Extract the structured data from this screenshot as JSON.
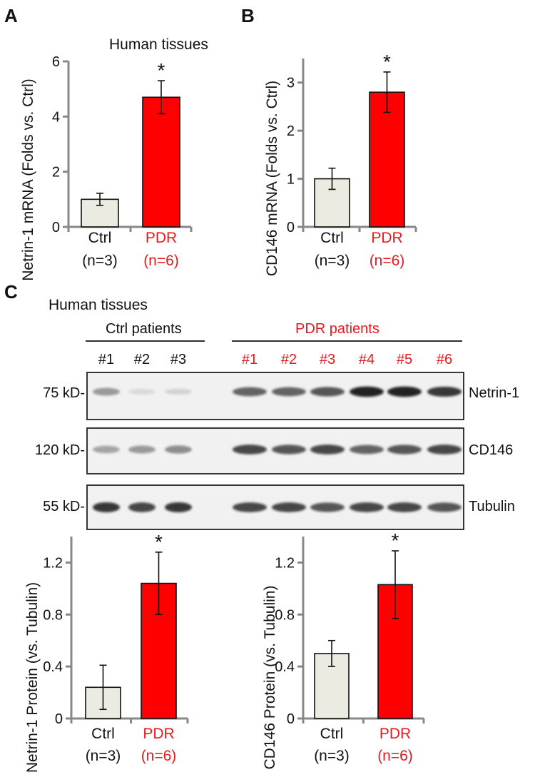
{
  "panels": {
    "A": "A",
    "B": "B",
    "C": "C"
  },
  "colors": {
    "ctrl_fill": "#ecebe2",
    "pdr_fill": "#ff0000",
    "pdr_text": "#e8191e",
    "axis": "#888888"
  },
  "panel_a_header": "Human tissues",
  "panel_c_header": "Human tissues",
  "chart_data": [
    {
      "id": "A",
      "type": "bar",
      "title": "",
      "ylabel": "Netrin-1 mRNA (Folds vs. Ctrl)",
      "xlabel": "",
      "ylim": [
        0,
        6
      ],
      "yticks": [
        "0",
        "2",
        "4",
        "6"
      ],
      "categories": [
        "Ctrl",
        "PDR"
      ],
      "category_n": [
        "(n=3)",
        "(n=6)"
      ],
      "values": [
        1.0,
        4.7
      ],
      "errors": [
        0.22,
        0.6
      ],
      "significance": [
        "",
        "*"
      ]
    },
    {
      "id": "B",
      "type": "bar",
      "title": "",
      "ylabel": "CD146 mRNA (Folds vs. Ctrl)",
      "xlabel": "",
      "ylim": [
        0,
        3.5
      ],
      "yticks": [
        "0",
        "1",
        "2",
        "3"
      ],
      "categories": [
        "Ctrl",
        "PDR"
      ],
      "category_n": [
        "(n=3)",
        "(n=6)"
      ],
      "values": [
        1.0,
        2.8
      ],
      "errors": [
        0.22,
        0.42
      ],
      "significance": [
        "",
        "*"
      ]
    },
    {
      "id": "C1",
      "type": "bar",
      "title": "",
      "ylabel": "Netrin-1 Protein (vs. Tubulin)",
      "xlabel": "",
      "ylim": [
        0,
        1.4
      ],
      "yticks": [
        "0",
        "0.4",
        "0.8",
        "1.2"
      ],
      "categories": [
        "Ctrl",
        "PDR"
      ],
      "category_n": [
        "(n=3)",
        "(n=6)"
      ],
      "values": [
        0.24,
        1.04
      ],
      "errors": [
        0.17,
        0.24
      ],
      "significance": [
        "",
        "*"
      ]
    },
    {
      "id": "C2",
      "type": "bar",
      "title": "",
      "ylabel": "CD146 Protein (vs. Tubulin)",
      "xlabel": "",
      "ylim": [
        0,
        1.4
      ],
      "yticks": [
        "0",
        "0.4",
        "0.8",
        "1.2"
      ],
      "categories": [
        "Ctrl",
        "PDR"
      ],
      "category_n": [
        "(n=3)",
        "(n=6)"
      ],
      "values": [
        0.5,
        1.03
      ],
      "errors": [
        0.1,
        0.26
      ],
      "significance": [
        "",
        "*"
      ]
    }
  ],
  "western_blot": {
    "ctrl_group_label": "Ctrl patients",
    "pdr_group_label": "PDR patients",
    "ctrl_lanes": [
      "#1",
      "#2",
      "#3"
    ],
    "pdr_lanes": [
      "#1",
      "#2",
      "#3",
      "#4",
      "#5",
      "#6"
    ],
    "blots": [
      {
        "marker": "75 kD-",
        "protein": "Netrin-1",
        "ctrl_intensity": [
          0.55,
          0.2,
          0.25
        ],
        "pdr_intensity": [
          0.75,
          0.75,
          0.8,
          0.95,
          0.95,
          0.9
        ]
      },
      {
        "marker": "120 kD-",
        "protein": "CD146",
        "ctrl_intensity": [
          0.5,
          0.55,
          0.6
        ],
        "pdr_intensity": [
          0.85,
          0.8,
          0.85,
          0.75,
          0.8,
          0.85
        ]
      },
      {
        "marker": "55 kD-",
        "protein": "Tubulin",
        "ctrl_intensity": [
          0.9,
          0.85,
          0.9
        ],
        "pdr_intensity": [
          0.85,
          0.85,
          0.8,
          0.85,
          0.85,
          0.8
        ]
      }
    ]
  }
}
